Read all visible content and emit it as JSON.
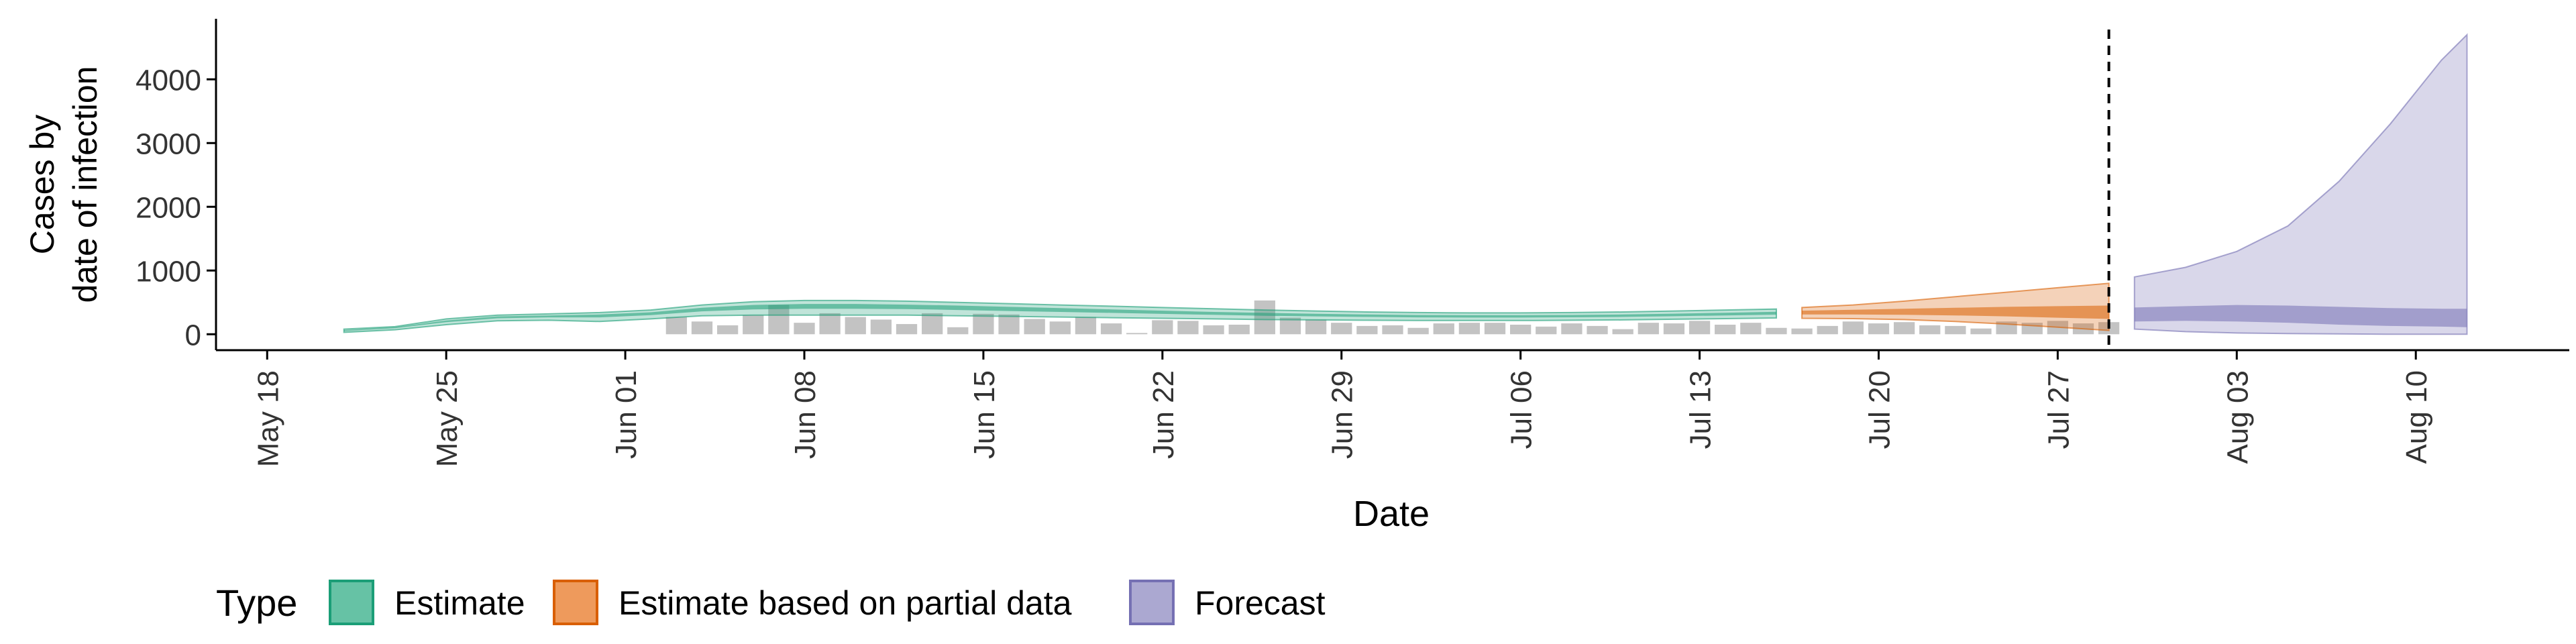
{
  "chart_data": {
    "type": "area",
    "title": "",
    "xlabel": "Date",
    "ylabel_lines": [
      "Cases by",
      "date of infection"
    ],
    "y_ticks": [
      0,
      1000,
      2000,
      3000,
      4000
    ],
    "y_tick_labels": [
      "0",
      "1000",
      "2000",
      "3000",
      "4000"
    ],
    "ylim": [
      -250,
      4950
    ],
    "x_ticks": [
      "2020-05-18",
      "2020-05-25",
      "2020-06-01",
      "2020-06-08",
      "2020-06-15",
      "2020-06-22",
      "2020-06-29",
      "2020-07-06",
      "2020-07-13",
      "2020-07-20",
      "2020-07-27",
      "2020-08-03",
      "2020-08-10"
    ],
    "x_tick_labels": [
      "May 18",
      "May 25",
      "Jun 01",
      "Jun 08",
      "Jun 15",
      "Jun 22",
      "Jun 29",
      "Jul 06",
      "Jul 13",
      "Jul 20",
      "Jul 27",
      "Aug 03",
      "Aug 10"
    ],
    "xlim": [
      "2020-05-16",
      "2020-08-16"
    ],
    "forecast_start_marker": "2020-07-29",
    "grid": false,
    "legend": {
      "title": "Type",
      "position": "bottom",
      "entries": [
        {
          "label": "Estimate",
          "fill": "#66c2a5",
          "stroke": "#1b9e77"
        },
        {
          "label": "Estimate based on partial data",
          "fill": "#ee9a5c",
          "stroke": "#d95f02"
        },
        {
          "label": "Forecast",
          "fill": "#aba8d1",
          "stroke": "#7570b3"
        }
      ]
    },
    "colors": {
      "estimate": "#1b9e77",
      "partial": "#d95f02",
      "forecast": "#7570b3",
      "reported_bars": "#bdbdbd"
    },
    "reported_cases": {
      "dates": [
        "2020-06-03",
        "2020-06-04",
        "2020-06-05",
        "2020-06-06",
        "2020-06-07",
        "2020-06-08",
        "2020-06-09",
        "2020-06-10",
        "2020-06-11",
        "2020-06-12",
        "2020-06-13",
        "2020-06-14",
        "2020-06-15",
        "2020-06-16",
        "2020-06-17",
        "2020-06-18",
        "2020-06-19",
        "2020-06-20",
        "2020-06-21",
        "2020-06-22",
        "2020-06-23",
        "2020-06-24",
        "2020-06-25",
        "2020-06-26",
        "2020-06-27",
        "2020-06-28",
        "2020-06-29",
        "2020-06-30",
        "2020-07-01",
        "2020-07-02",
        "2020-07-03",
        "2020-07-04",
        "2020-07-05",
        "2020-07-06",
        "2020-07-07",
        "2020-07-08",
        "2020-07-09",
        "2020-07-10",
        "2020-07-11",
        "2020-07-12",
        "2020-07-13",
        "2020-07-14",
        "2020-07-15",
        "2020-07-16",
        "2020-07-17",
        "2020-07-18",
        "2020-07-19",
        "2020-07-20",
        "2020-07-21",
        "2020-07-22",
        "2020-07-23",
        "2020-07-24",
        "2020-07-25",
        "2020-07-26",
        "2020-07-27",
        "2020-07-28",
        "2020-07-29"
      ],
      "values": [
        270,
        200,
        140,
        300,
        460,
        180,
        330,
        270,
        230,
        160,
        330,
        110,
        320,
        310,
        240,
        200,
        270,
        170,
        20,
        220,
        210,
        140,
        150,
        530,
        260,
        230,
        180,
        130,
        140,
        100,
        170,
        180,
        180,
        150,
        120,
        170,
        130,
        80,
        180,
        170,
        210,
        150,
        180,
        100,
        90,
        130,
        200,
        170,
        190,
        140,
        130,
        90,
        200,
        180,
        210,
        170,
        190
      ]
    },
    "series": [
      {
        "name": "Estimate",
        "dates": [
          "2020-05-21",
          "2020-05-23",
          "2020-05-25",
          "2020-05-27",
          "2020-05-29",
          "2020-05-31",
          "2020-06-02",
          "2020-06-04",
          "2020-06-06",
          "2020-06-08",
          "2020-06-10",
          "2020-06-12",
          "2020-06-14",
          "2020-06-16",
          "2020-06-18",
          "2020-06-20",
          "2020-06-22",
          "2020-06-24",
          "2020-06-26",
          "2020-06-28",
          "2020-06-30",
          "2020-07-02",
          "2020-07-04",
          "2020-07-06",
          "2020-07-08",
          "2020-07-10",
          "2020-07-12",
          "2020-07-14",
          "2020-07-16"
        ],
        "outer_lower": [
          30,
          70,
          150,
          210,
          220,
          200,
          240,
          290,
          300,
          300,
          300,
          300,
          290,
          280,
          270,
          260,
          250,
          240,
          230,
          225,
          220,
          215,
          215,
          215,
          220,
          225,
          235,
          245,
          255
        ],
        "outer_upper": [
          80,
          120,
          240,
          300,
          320,
          340,
          380,
          460,
          510,
          530,
          530,
          520,
          500,
          480,
          460,
          440,
          420,
          400,
          380,
          365,
          350,
          340,
          335,
          335,
          340,
          350,
          365,
          380,
          395
        ],
        "inner_lower": [
          50,
          95,
          190,
          250,
          265,
          265,
          300,
          360,
          390,
          400,
          400,
          395,
          380,
          365,
          350,
          335,
          320,
          305,
          290,
          280,
          272,
          265,
          262,
          262,
          266,
          272,
          283,
          295,
          308
        ],
        "inner_upper": [
          65,
          110,
          215,
          280,
          295,
          310,
          345,
          415,
          460,
          475,
          475,
          465,
          450,
          430,
          410,
          390,
          370,
          350,
          335,
          322,
          310,
          302,
          298,
          298,
          303,
          310,
          323,
          337,
          352
        ]
      },
      {
        "name": "Estimate based on partial data",
        "dates": [
          "2020-07-17",
          "2020-07-19",
          "2020-07-21",
          "2020-07-23",
          "2020-07-25",
          "2020-07-27",
          "2020-07-29"
        ],
        "outer_lower": [
          250,
          245,
          230,
          200,
          160,
          110,
          60
        ],
        "outer_upper": [
          420,
          460,
          520,
          590,
          660,
          730,
          800
        ],
        "inner_lower": [
          310,
          310,
          305,
          295,
          280,
          260,
          240
        ],
        "inner_upper": [
          370,
          385,
          400,
          415,
          430,
          440,
          450
        ]
      },
      {
        "name": "Forecast",
        "dates": [
          "2020-07-30",
          "2020-08-01",
          "2020-08-03",
          "2020-08-05",
          "2020-08-07",
          "2020-08-09",
          "2020-08-11",
          "2020-08-12"
        ],
        "outer_lower": [
          80,
          40,
          20,
          10,
          5,
          0,
          0,
          0
        ],
        "outer_upper": [
          900,
          1050,
          1300,
          1700,
          2400,
          3300,
          4300,
          4700
        ],
        "inner_lower": [
          200,
          210,
          200,
          180,
          150,
          130,
          120,
          110
        ],
        "inner_upper": [
          420,
          440,
          460,
          450,
          430,
          410,
          400,
          400
        ]
      }
    ]
  }
}
